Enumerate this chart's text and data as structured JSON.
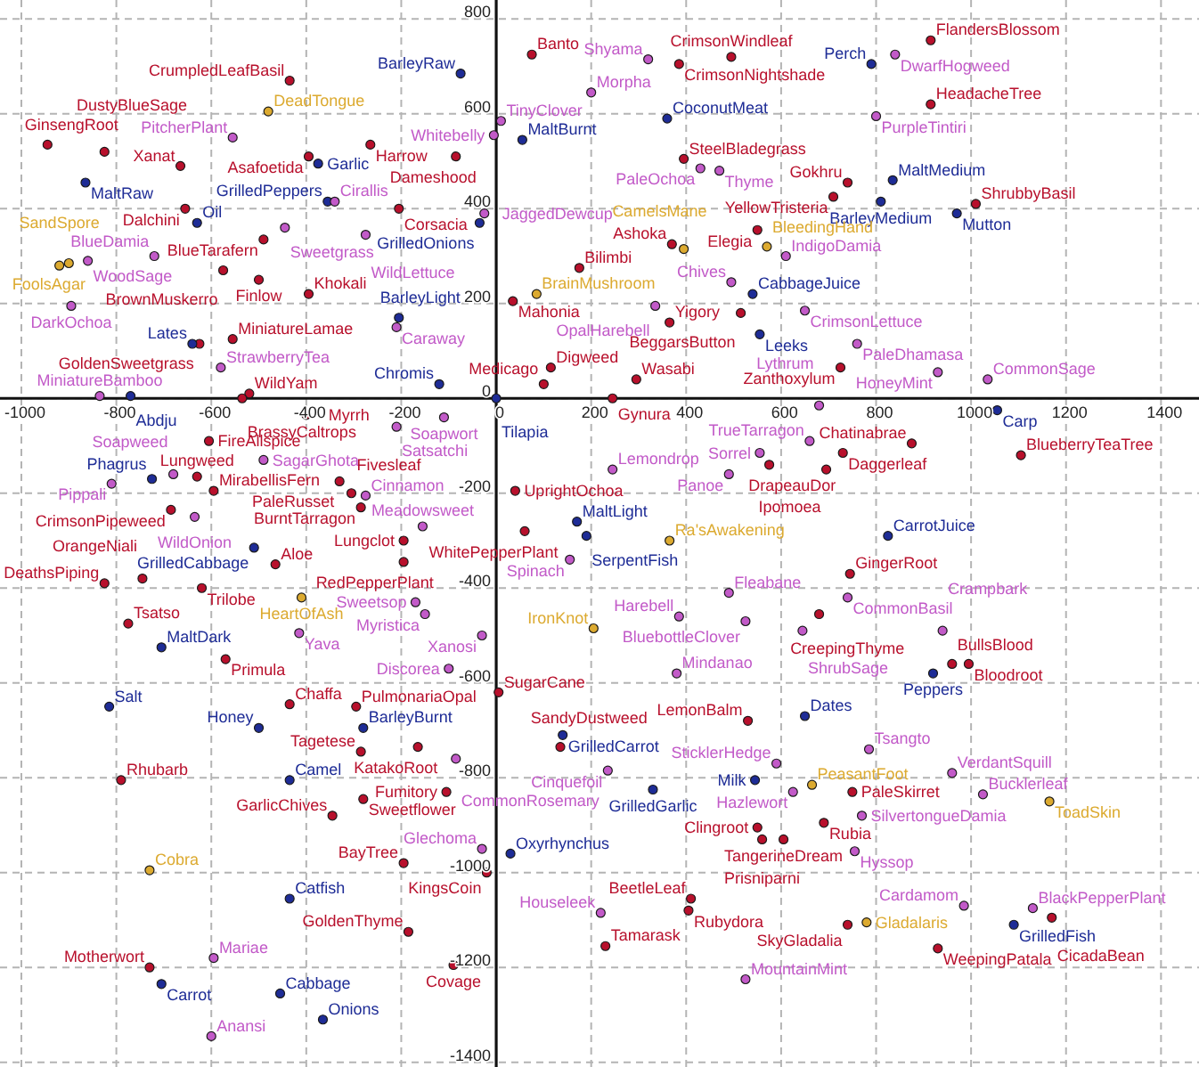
{
  "chart_data": {
    "type": "scatter",
    "xlim": [
      -1045,
      1480
    ],
    "ylim": [
      -1410,
      840
    ],
    "xticks": [
      -1000,
      -800,
      -600,
      -400,
      -200,
      0,
      200,
      400,
      600,
      800,
      1000,
      1200,
      1400
    ],
    "yticks": [
      -1400,
      -1200,
      -1000,
      -800,
      -600,
      -400,
      -200,
      0,
      200,
      400,
      600,
      800
    ],
    "grid": true,
    "marker": "circle",
    "series": [
      {
        "color": "#b8102c",
        "x": [
          -435,
          -945,
          -825,
          -665,
          -395,
          -265,
          -655,
          -205,
          -490,
          -575,
          -500,
          -395,
          -555,
          -625,
          -520,
          -535,
          -400,
          -605,
          -630,
          -595,
          -685,
          -330,
          -305,
          -285,
          -465,
          -825,
          -745,
          -620,
          -775,
          -570,
          -435,
          -295,
          -285,
          -790,
          -280,
          -345,
          -195,
          -185,
          -730,
          75,
          385,
          495,
          -85,
          395,
          370,
          550,
          175,
          35,
          515,
          365,
          115,
          100,
          295,
          245,
          575,
          40,
          60,
          -195,
          -195,
          5,
          -165,
          -105,
          135,
          530,
          550,
          560,
          605,
          -20,
          410,
          405,
          230,
          -90,
          915,
          915,
          740,
          710,
          1010,
          725,
          875,
          730,
          1105,
          695,
          745,
          680,
          960,
          995,
          750,
          690,
          930,
          740,
          1170
        ],
        "values": [
          670,
          535,
          520,
          490,
          510,
          535,
          400,
          400,
          335,
          270,
          250,
          220,
          125,
          115,
          10,
          0,
          -35,
          -90,
          -165,
          -195,
          -235,
          -175,
          -200,
          -230,
          -350,
          -390,
          -380,
          -400,
          -475,
          -550,
          -645,
          -650,
          -745,
          -805,
          -845,
          -880,
          -980,
          -1125,
          -1200,
          725,
          705,
          720,
          510,
          505,
          325,
          355,
          275,
          205,
          180,
          160,
          65,
          30,
          40,
          0,
          -140,
          -195,
          -280,
          -300,
          -345,
          -620,
          -735,
          -830,
          -735,
          -680,
          -905,
          -930,
          -930,
          -1000,
          -1055,
          -1080,
          -1155,
          -1195,
          755,
          620,
          455,
          425,
          410,
          65,
          -95,
          -115,
          -120,
          -150,
          -370,
          -455,
          -560,
          -560,
          -830,
          -895,
          -1160,
          -1110,
          -1095
        ],
        "value_labels": [
          "CrumpledLeafBasil",
          "GinsengRoot",
          "DustyBlueSage",
          "Xanat",
          "Asafoetida",
          "Harrow",
          "Dalchini",
          "Corsacia",
          "BlueTarafern",
          "BrownMuskerro",
          "Finlow",
          "Khokali",
          "MiniatureLamae",
          "GoldenSweetgrass",
          "WildYam",
          "BrassyCaltrops",
          "Myrrh",
          "FireAllspice",
          "Lungweed",
          "MirabellisFern",
          "CrimsonPipeweed",
          "PaleRusset",
          "Fivesleaf",
          "BurntTarragon",
          "Aloe",
          "DeathsPiping",
          "OrangeNiali",
          "Trilobe",
          "Tsatso",
          "Primula",
          "Chaffa",
          "PulmonariaOpal",
          "Tagetese",
          "Rhubarb",
          "Sweetflower",
          "GarlicChives",
          "BayTree",
          "GoldenThyme",
          "Motherwort",
          "Banto",
          "CrimsonNightshade",
          "CrimsonWindleaf",
          "Dameshood",
          "SteelBladegrass",
          "Ashoka",
          "Elegia",
          "Bilimbi",
          "Mahonia",
          "BeggarsButton",
          "Yigory",
          "Digweed",
          "Medicago",
          "Wasabi",
          "Gynura",
          "DrapeauDor",
          "UprightOchoa",
          "WhitePepperPlant",
          "Lungclot",
          "RedPepperPlant",
          "SugarCane",
          "KatakoRoot",
          "Fumitory",
          "SandyDustweed",
          "LemonBalm",
          "Clingroot",
          "Prisniparni",
          "TangerineDream",
          "KingsCoin",
          "BeetleLeaf",
          "Rubydora",
          "Tamarask",
          "Covage",
          "FlandersBlossom",
          "HeadacheTree",
          "Gokhru",
          "YellowTristeria",
          "ShrubbyBasil",
          "Zanthoxylum",
          "Chatinabrae",
          "Daggerleaf",
          "BlueberryTeaTree",
          "Ipomoea",
          "GingerRoot",
          "CreepingThyme",
          "BullsBlood",
          "Bloodroot",
          "PaleSkirret",
          "Rubia",
          "WeepingPatala",
          "SkyGladalia",
          "CicadaBean"
        ]
      },
      {
        "color": "#1e2c96",
        "x": [
          -865,
          -375,
          -630,
          -355,
          -640,
          -770,
          -205,
          -725,
          -510,
          -705,
          -815,
          -500,
          -280,
          -435,
          -435,
          -705,
          -455,
          -365,
          -75,
          55,
          360,
          -35,
          540,
          555,
          -120,
          0,
          170,
          190,
          140,
          330,
          545,
          30,
          790,
          835,
          810,
          970,
          1055,
          825,
          920,
          650,
          1090
        ],
        "values": [
          455,
          495,
          370,
          415,
          115,
          5,
          170,
          -170,
          -315,
          -525,
          -650,
          -695,
          -695,
          -805,
          -1055,
          -1235,
          -1255,
          -1310,
          685,
          545,
          590,
          370,
          220,
          135,
          30,
          0,
          -260,
          -290,
          -710,
          -825,
          -805,
          -960,
          705,
          460,
          415,
          390,
          -25,
          -290,
          -580,
          -670,
          -1110
        ],
        "value_labels": [
          "MaltRaw",
          "Garlic",
          "Oil",
          "GrilledPeppers",
          "Lates",
          "Abdju",
          "BarleyLight",
          "Phagrus",
          "GrilledCabbage",
          "MaltDark",
          "Salt",
          "Honey",
          "BarleyBurnt",
          "Camel",
          "Catfish",
          "Carrot",
          "Cabbage",
          "Onions",
          "BarleyRaw",
          "MaltBurnt",
          "CoconutMeat",
          "GrilledOnions",
          "CabbageJuice",
          "Leeks",
          "Chromis",
          "Tilapia",
          "MaltLight",
          "SerpentFish",
          "GrilledCarrot",
          "GrilledGarlic",
          "Milk",
          "Oxyrhynchus",
          "Perch",
          "MaltMedium",
          "BarleyMedium",
          "Mutton",
          "Carp",
          "CarrotJuice",
          "Peppers",
          "Dates",
          "GrilledFish"
        ]
      },
      {
        "color": "#c25ac8",
        "x": [
          -555,
          -340,
          -445,
          -275,
          -720,
          -860,
          -895,
          -580,
          -835,
          -210,
          -210,
          -110,
          -490,
          -810,
          -680,
          -635,
          -275,
          -415,
          -595,
          -600,
          320,
          200,
          10,
          -5,
          430,
          470,
          -25,
          610,
          495,
          335,
          650,
          555,
          490,
          245,
          -155,
          155,
          -170,
          -150,
          -30,
          490,
          385,
          525,
          -100,
          380,
          -85,
          235,
          590,
          625,
          -30,
          220,
          525,
          840,
          800,
          760,
          930,
          1035,
          680,
          660,
          740,
          645,
          940,
          785,
          960,
          1025,
          770,
          755,
          985,
          1130
        ],
        "values": [
          550,
          415,
          360,
          345,
          300,
          290,
          195,
          65,
          5,
          150,
          -60,
          -40,
          -130,
          -180,
          -160,
          -250,
          -205,
          -495,
          -1180,
          -1345,
          715,
          645,
          585,
          555,
          485,
          480,
          390,
          300,
          245,
          195,
          185,
          -115,
          -160,
          -150,
          -270,
          -340,
          -430,
          -455,
          -500,
          -410,
          -460,
          -470,
          -570,
          -580,
          -760,
          -785,
          -770,
          -830,
          -950,
          -1085,
          -1225,
          725,
          595,
          115,
          55,
          40,
          -15,
          -90,
          -420,
          -490,
          -490,
          -740,
          -790,
          -835,
          -880,
          -955,
          -1070,
          -1075
        ],
        "value_labels": [
          "PitcherPlant",
          "Cirallis",
          "Sweetgrass",
          "WildLettuce",
          "BlueDamia",
          "WoodSage",
          "DarkOchoa",
          "StrawberryTea",
          "MiniatureBamboo",
          "Caraway",
          "Satsatchi",
          "Soapwort",
          "SagarGhota",
          "Pippali",
          "Soapweed",
          "WildOnion",
          "Cinnamon",
          "Yava",
          "Mariae",
          "Anansi",
          "Shyama",
          "Morpha",
          "TinyClover",
          "Whitebelly",
          "PaleOchoa",
          "Thyme",
          "JaggedDewcup",
          "IndigoDamia",
          "Chives",
          "OpalHarebell",
          "CrimsonLettuce",
          "Sorrel",
          "Panoe",
          "Lemondrop",
          "Meadowsweet",
          "Spinach",
          "Sweetsop",
          "Myristica",
          "Xanosi",
          "Fleabane",
          "Harebell",
          "BluebottleClover",
          "Discorea",
          "Mindanao",
          "CommonRosemary",
          "Cinquefoil",
          "SticklerHedge",
          "Hazlewort",
          "Glechoma",
          "Houseleek",
          "MountainMint",
          "DwarfHogweed",
          "PurpleTintiri",
          "PaleDhamasa",
          "HoneyMint",
          "CommonSage",
          "Lythrum",
          "TrueTarragon",
          "CommonBasil",
          "ShrubSage",
          "Crampbark",
          "Tsangto",
          "VerdantSquill",
          "Bucklerleaf",
          "SilvertongueDamia",
          "Hyssop",
          "Cardamom",
          "BlackPepperPlant"
        ]
      },
      {
        "color": "#dcaa30",
        "x": [
          -480,
          -920,
          -900,
          -410,
          -730,
          395,
          570,
          85,
          205,
          365,
          665,
          1165,
          780
        ],
        "values": [
          605,
          280,
          285,
          -420,
          -995,
          315,
          320,
          220,
          -485,
          -300,
          -815,
          -850,
          -1105
        ],
        "value_labels": [
          "DeadTongue",
          "SandSpore",
          "FoolsAgar",
          "HeartOfAsh",
          "Cobra",
          "CamelsMane",
          "BleedingHand",
          "BrainMushroom",
          "IronKnot",
          "Ra'sAwakening",
          "PeasantFoot",
          "ToadSkin",
          "Gladalaris"
        ]
      }
    ]
  }
}
